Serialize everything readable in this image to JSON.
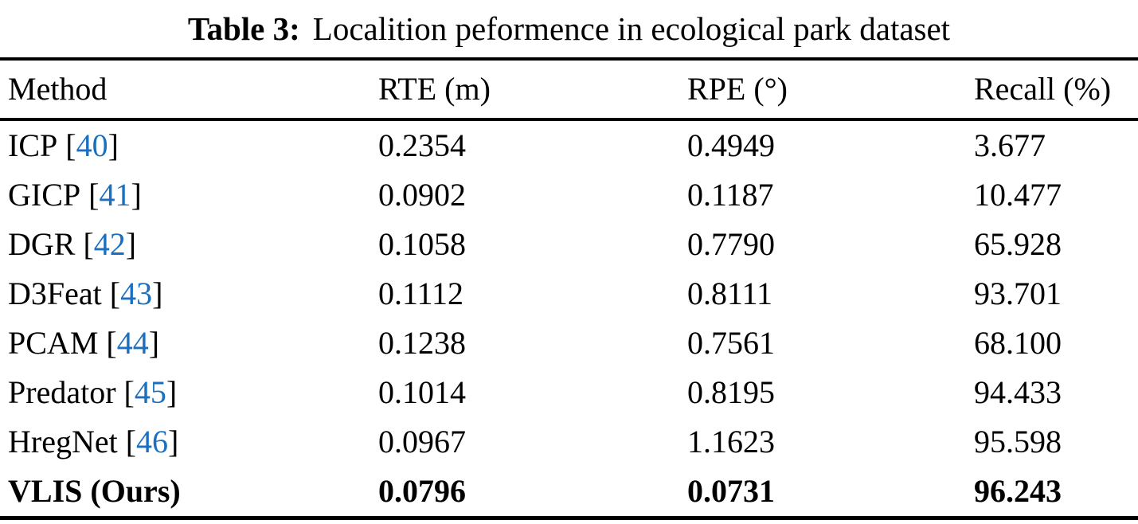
{
  "title": {
    "label": "Table 3:",
    "caption": "Localition peformence in ecological park dataset"
  },
  "table": {
    "columns": [
      "Method",
      "RTE (m)",
      "RPE (°)",
      "Recall (%)"
    ],
    "cite_open_bracket": "[",
    "cite_close_bracket": "]",
    "rows": [
      {
        "method": "ICP",
        "cite": "40",
        "rte": "0.2354",
        "rpe": "0.4949",
        "recall": "3.677",
        "bold": false
      },
      {
        "method": "GICP",
        "cite": "41",
        "rte": "0.0902",
        "rpe": "0.1187",
        "recall": "10.477",
        "bold": false
      },
      {
        "method": "DGR",
        "cite": "42",
        "rte": "0.1058",
        "rpe": "0.7790",
        "recall": "65.928",
        "bold": false
      },
      {
        "method": "D3Feat",
        "cite": "43",
        "rte": "0.1112",
        "rpe": "0.8111",
        "recall": "93.701",
        "bold": false
      },
      {
        "method": "PCAM",
        "cite": "44",
        "rte": "0.1238",
        "rpe": "0.7561",
        "recall": "68.100",
        "bold": false
      },
      {
        "method": "Predator",
        "cite": "45",
        "rte": "0.1014",
        "rpe": "0.8195",
        "recall": "94.433",
        "bold": false
      },
      {
        "method": "HregNet",
        "cite": "46",
        "rte": "0.0967",
        "rpe": "1.1623",
        "recall": "95.598",
        "bold": false
      },
      {
        "method": "VLIS (Ours)",
        "cite": null,
        "rte": "0.0796",
        "rpe": "0.0731",
        "recall": "96.243",
        "bold": true
      }
    ]
  },
  "colors": {
    "text": "#000000",
    "citation_link": "#1a6fbf",
    "rule": "#000000",
    "background": "#ffffff"
  }
}
